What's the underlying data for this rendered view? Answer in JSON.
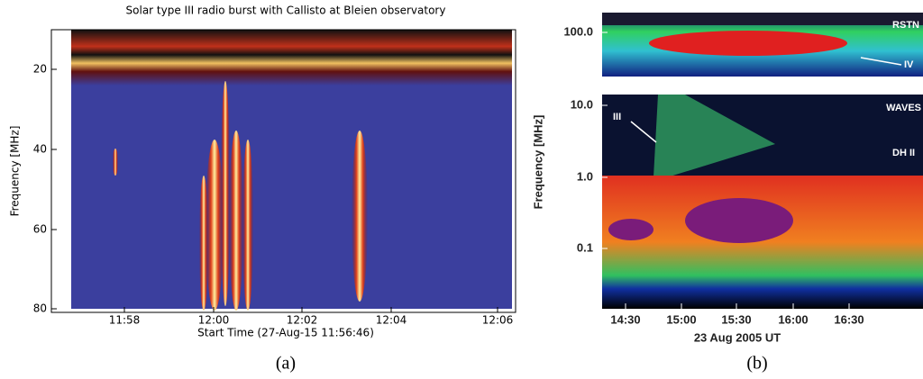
{
  "panels": [
    {
      "title": "Solar type III radio burst with Callisto at Bleien observatory",
      "y_label": "Frequency [MHz]",
      "x_label": "Start Time (27-Aug-15 11:56:46)",
      "y_ticks": [
        "20",
        "40",
        "60",
        "80"
      ],
      "x_ticks": [
        "11:58",
        "12:00",
        "12:02",
        "12:04",
        "12:06"
      ],
      "caption": "(a)"
    },
    {
      "y_label": "Frequency [MHz]",
      "x_label": "23 Aug 2005 UT",
      "y_ticks": [
        "100.0",
        "10.0",
        "1.0",
        "0.1"
      ],
      "x_ticks": [
        "14:30",
        "15:00",
        "15:30",
        "16:00",
        "16:30"
      ],
      "annotations": [
        "RSTN",
        "IV",
        "WAVES",
        "III",
        "DH II"
      ],
      "caption": "(b)"
    }
  ]
}
